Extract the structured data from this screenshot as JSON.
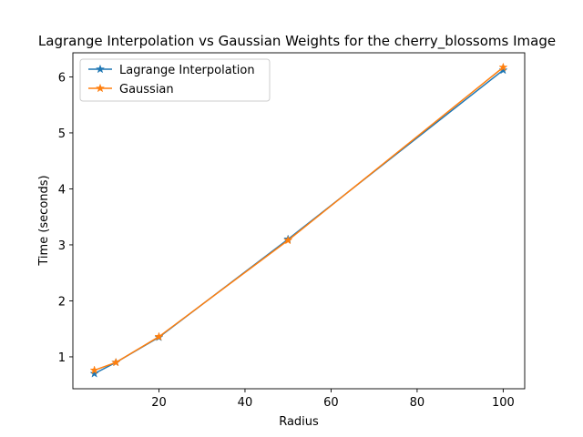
{
  "chart_data": {
    "type": "line",
    "title": "Lagrange Interpolation vs Gaussian Weights for the cherry_blossoms Image",
    "xlabel": "Radius",
    "ylabel": "Time (seconds)",
    "x": [
      5,
      10,
      20,
      50,
      100
    ],
    "xlim": [
      0,
      105
    ],
    "ylim": [
      0.43,
      6.43
    ],
    "xticks": [
      20,
      40,
      60,
      80,
      100
    ],
    "yticks": [
      1,
      2,
      3,
      4,
      5,
      6
    ],
    "grid": false,
    "legend_position": "upper-left",
    "marker": "star",
    "series": [
      {
        "name": "Lagrange Interpolation",
        "color": "#1f77b4",
        "values": [
          0.7,
          0.9,
          1.35,
          3.1,
          6.12
        ]
      },
      {
        "name": "Gaussian",
        "color": "#ff7f0e",
        "values": [
          0.76,
          0.9,
          1.36,
          3.08,
          6.17
        ]
      }
    ]
  }
}
